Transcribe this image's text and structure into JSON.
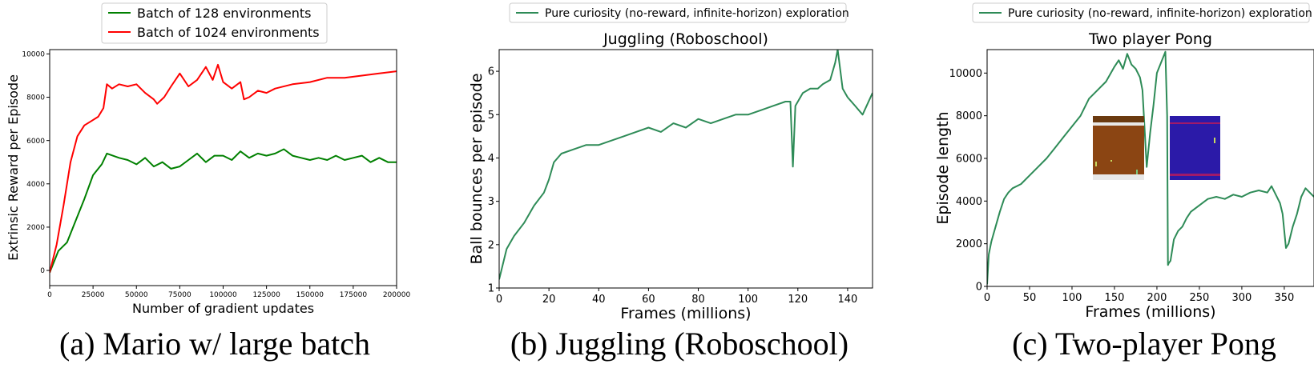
{
  "colors": {
    "green": "#008000",
    "red": "#ff0000",
    "seagreen": "#2e8b57",
    "axis": "#000000"
  },
  "captions": [
    "(a) Mario w/ large batch",
    "(b) Juggling (Roboschool)",
    "(c) Two-player Pong"
  ],
  "chart_data": [
    {
      "type": "line",
      "title": "",
      "xlabel": "Number of gradient updates",
      "ylabel": "Extrinsic Reward per Episode",
      "xlim": [
        0,
        200000
      ],
      "ylim": [
        -700,
        10200
      ],
      "xticks": [
        "0",
        "25000",
        "50000",
        "75000",
        "100000",
        "125000",
        "150000",
        "175000",
        "200000"
      ],
      "yticks": [
        "0",
        "2000",
        "4000",
        "6000",
        "8000",
        "10000"
      ],
      "legend_position": "top-center",
      "series": [
        {
          "name": "Batch of 128 environments",
          "color": "green",
          "x": [
            0,
            5000,
            10000,
            15000,
            20000,
            25000,
            30000,
            33000,
            40000,
            45000,
            50000,
            55000,
            60000,
            65000,
            70000,
            75000,
            80000,
            85000,
            90000,
            95000,
            100000,
            105000,
            110000,
            115000,
            120000,
            125000,
            130000,
            135000,
            140000,
            145000,
            150000,
            155000,
            160000,
            165000,
            170000,
            175000,
            180000,
            185000,
            190000,
            195000,
            200000
          ],
          "y": [
            -100,
            900,
            1300,
            2300,
            3300,
            4400,
            4900,
            5400,
            5200,
            5100,
            4900,
            5200,
            4800,
            5000,
            4700,
            4800,
            5100,
            5400,
            5000,
            5300,
            5300,
            5100,
            5500,
            5200,
            5400,
            5300,
            5400,
            5600,
            5300,
            5200,
            5100,
            5200,
            5100,
            5300,
            5100,
            5200,
            5300,
            5000,
            5200,
            5000,
            5000
          ]
        },
        {
          "name": "Batch of 1024 environments",
          "color": "red",
          "x": [
            0,
            4000,
            8000,
            12000,
            16000,
            20000,
            24000,
            28000,
            31000,
            33000,
            36000,
            40000,
            45000,
            50000,
            55000,
            60000,
            62000,
            66000,
            70000,
            75000,
            80000,
            85000,
            90000,
            94000,
            97000,
            100000,
            105000,
            110000,
            112000,
            115000,
            120000,
            125000,
            130000,
            140000,
            150000,
            160000,
            170000,
            180000,
            190000,
            200000
          ],
          "y": [
            -100,
            1200,
            3000,
            5000,
            6200,
            6700,
            6900,
            7100,
            7500,
            8600,
            8400,
            8600,
            8500,
            8600,
            8200,
            7900,
            7700,
            8000,
            8500,
            9100,
            8500,
            8800,
            9400,
            8800,
            9500,
            8700,
            8400,
            8700,
            7900,
            8000,
            8300,
            8200,
            8400,
            8600,
            8700,
            8900,
            8900,
            9000,
            9100,
            9200
          ]
        }
      ]
    },
    {
      "type": "line",
      "title": "Juggling (Roboschool)",
      "xlabel": "Frames (millions)",
      "ylabel": "Ball bounces per episode",
      "xlim": [
        0,
        150
      ],
      "ylim": [
        1,
        6.5
      ],
      "xticks": [
        "0",
        "20",
        "40",
        "60",
        "80",
        "100",
        "120",
        "140"
      ],
      "yticks": [
        "1",
        "2",
        "3",
        "4",
        "5",
        "6"
      ],
      "legend_position": "top-center",
      "series": [
        {
          "name": "Pure curiosity (no-reward, infinite-horizon) exploration",
          "color": "seagreen",
          "x": [
            0,
            3,
            6,
            10,
            14,
            18,
            20,
            22,
            25,
            30,
            35,
            40,
            45,
            50,
            55,
            60,
            65,
            70,
            75,
            80,
            85,
            90,
            95,
            100,
            105,
            110,
            115,
            117,
            118,
            119,
            122,
            125,
            128,
            130,
            133,
            135,
            136,
            138,
            140,
            143,
            146,
            150
          ],
          "y": [
            1.2,
            1.9,
            2.2,
            2.5,
            2.9,
            3.2,
            3.5,
            3.9,
            4.1,
            4.2,
            4.3,
            4.3,
            4.4,
            4.5,
            4.6,
            4.7,
            4.6,
            4.8,
            4.7,
            4.9,
            4.8,
            4.9,
            5.0,
            5.0,
            5.1,
            5.2,
            5.3,
            5.3,
            3.8,
            5.2,
            5.5,
            5.6,
            5.6,
            5.7,
            5.8,
            6.2,
            6.5,
            5.6,
            5.4,
            5.2,
            5.0,
            5.5
          ]
        }
      ]
    },
    {
      "type": "line",
      "title": "Two player Pong",
      "xlabel": "Frames (millions)",
      "ylabel": "Episode length",
      "xlim": [
        0,
        385
      ],
      "ylim": [
        0,
        11100
      ],
      "xticks": [
        "0",
        "50",
        "100",
        "150",
        "200",
        "250",
        "300",
        "350"
      ],
      "yticks": [
        "0",
        "2000",
        "4000",
        "6000",
        "8000",
        "10000"
      ],
      "legend_position": "top-center",
      "series": [
        {
          "name": "Pure curiosity (no-reward, infinite-horizon) exploration",
          "color": "seagreen",
          "x": [
            0,
            2,
            5,
            10,
            15,
            20,
            25,
            30,
            40,
            50,
            60,
            70,
            80,
            90,
            100,
            110,
            120,
            130,
            140,
            150,
            155,
            160,
            165,
            170,
            175,
            180,
            183,
            188,
            192,
            196,
            200,
            205,
            210,
            212,
            213,
            214,
            216,
            220,
            225,
            230,
            235,
            240,
            250,
            260,
            270,
            280,
            290,
            300,
            310,
            320,
            330,
            335,
            340,
            345,
            348,
            352,
            355,
            360,
            365,
            370,
            375,
            380,
            385
          ],
          "y": [
            100,
            1500,
            2100,
            2800,
            3500,
            4100,
            4400,
            4600,
            4800,
            5200,
            5600,
            6000,
            6500,
            7000,
            7500,
            8000,
            8800,
            9200,
            9600,
            10300,
            10600,
            10200,
            10900,
            10400,
            10200,
            9800,
            9200,
            5600,
            7200,
            8500,
            10000,
            10500,
            11000,
            8000,
            1000,
            1100,
            1200,
            2200,
            2600,
            2800,
            3200,
            3500,
            3800,
            4100,
            4200,
            4100,
            4300,
            4200,
            4400,
            4500,
            4400,
            4700,
            4300,
            3900,
            3400,
            1800,
            2000,
            2800,
            3400,
            4200,
            4600,
            4400,
            4200
          ]
        }
      ]
    }
  ]
}
